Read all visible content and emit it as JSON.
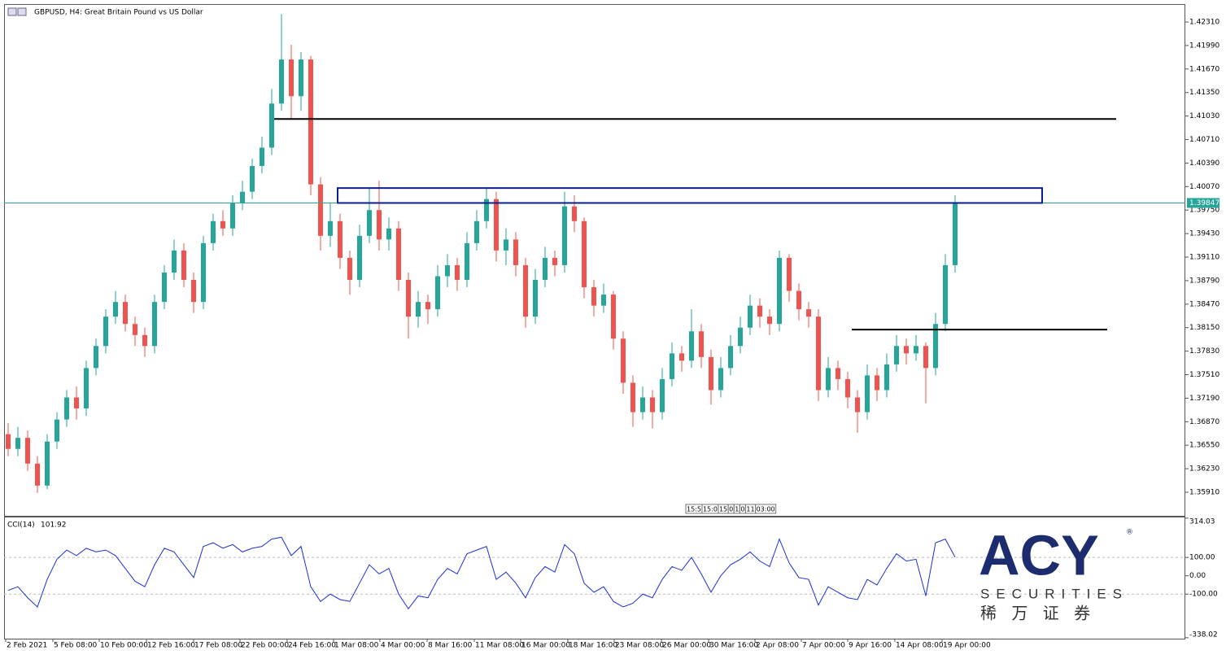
{
  "chart_data": {
    "type": "candlestick",
    "title": "GBPUSD, H4:  Great Britain Pound vs US Dollar",
    "bull_color": "#26a69a",
    "bear_color": "#ef5350",
    "ylim": [
      1.35589,
      1.42554
    ],
    "yticks": [
      {
        "value": 1.4231,
        "label": "1.42310"
      },
      {
        "value": 1.4199,
        "label": "1.41990"
      },
      {
        "value": 1.4167,
        "label": "1.41670"
      },
      {
        "value": 1.4135,
        "label": "1.41350"
      },
      {
        "value": 1.4103,
        "label": "1.41030"
      },
      {
        "value": 1.4071,
        "label": "1.40710"
      },
      {
        "value": 1.4039,
        "label": "1.40390"
      },
      {
        "value": 1.4007,
        "label": "1.40070"
      },
      {
        "value": 1.3975,
        "label": "1.39750"
      },
      {
        "value": 1.3943,
        "label": "1.39430"
      },
      {
        "value": 1.3911,
        "label": "1.39110"
      },
      {
        "value": 1.3879,
        "label": "1.38790"
      },
      {
        "value": 1.3847,
        "label": "1.38470"
      },
      {
        "value": 1.3815,
        "label": "1.38150"
      },
      {
        "value": 1.3783,
        "label": "1.37830"
      },
      {
        "value": 1.3751,
        "label": "1.37510"
      },
      {
        "value": 1.3719,
        "label": "1.37190"
      },
      {
        "value": 1.3687,
        "label": "1.36870"
      },
      {
        "value": 1.3655,
        "label": "1.36550"
      },
      {
        "value": 1.3623,
        "label": "1.36230"
      },
      {
        "value": 1.3591,
        "label": "1.35910"
      }
    ],
    "xticks": [
      {
        "value": -0.25,
        "label": "2 Feb 2021"
      },
      {
        "value": 4.58,
        "label": "5 Feb 08:00"
      },
      {
        "value": 9.33,
        "label": "10 Feb 00:00"
      },
      {
        "value": 14.17,
        "label": "12 Feb 16:00"
      },
      {
        "value": 19,
        "label": "17 Feb 08:00"
      },
      {
        "value": 23.75,
        "label": "22 Feb 00:00"
      },
      {
        "value": 28.58,
        "label": "24 Feb 16:00"
      },
      {
        "value": 33.33,
        "label": "1 Mar 08:00"
      },
      {
        "value": 38.08,
        "label": "4 Mar 00:00"
      },
      {
        "value": 42.92,
        "label": "8 Mar 16:00"
      },
      {
        "value": 47.75,
        "label": "11 Mar 08:00"
      },
      {
        "value": 52.5,
        "label": "16 Mar 00:00"
      },
      {
        "value": 57.33,
        "label": "18 Mar 16:00"
      },
      {
        "value": 62.08,
        "label": "23 Mar 08:00"
      },
      {
        "value": 66.92,
        "label": "26 Mar 00:00"
      },
      {
        "value": 71.75,
        "label": "30 Mar 16:00"
      },
      {
        "value": 76.5,
        "label": "2 Apr 08:00"
      },
      {
        "value": 81.25,
        "label": "7 Apr 00:00"
      },
      {
        "value": 86,
        "label": "9 Apr 16:00"
      },
      {
        "value": 90.83,
        "label": "14 Apr 08:00"
      },
      {
        "value": 95.67,
        "label": "19 Apr 00:00"
      }
    ],
    "ohlc": [
      [
        1.367,
        1.3685,
        1.364,
        1.365
      ],
      [
        1.365,
        1.368,
        1.364,
        1.3665
      ],
      [
        1.3665,
        1.3675,
        1.362,
        1.363
      ],
      [
        1.363,
        1.364,
        1.359,
        1.36
      ],
      [
        1.36,
        1.367,
        1.3595,
        1.366
      ],
      [
        1.366,
        1.37,
        1.365,
        1.369
      ],
      [
        1.369,
        1.373,
        1.368,
        1.372
      ],
      [
        1.372,
        1.3735,
        1.369,
        1.3705
      ],
      [
        1.3705,
        1.377,
        1.3695,
        1.376
      ],
      [
        1.376,
        1.38,
        1.375,
        1.379
      ],
      [
        1.379,
        1.384,
        1.378,
        1.383
      ],
      [
        1.383,
        1.3865,
        1.382,
        1.385
      ],
      [
        1.385,
        1.386,
        1.381,
        1.382
      ],
      [
        1.382,
        1.383,
        1.379,
        1.3805
      ],
      [
        1.3805,
        1.3815,
        1.3775,
        1.379
      ],
      [
        1.379,
        1.386,
        1.378,
        1.385
      ],
      [
        1.385,
        1.39,
        1.384,
        1.389
      ],
      [
        1.389,
        1.3935,
        1.388,
        1.392
      ],
      [
        1.392,
        1.393,
        1.387,
        1.388
      ],
      [
        1.388,
        1.389,
        1.3835,
        1.385
      ],
      [
        1.385,
        1.394,
        1.384,
        1.393
      ],
      [
        1.393,
        1.397,
        1.392,
        1.396
      ],
      [
        1.396,
        1.3975,
        1.394,
        1.395
      ],
      [
        1.395,
        1.3995,
        1.394,
        1.3985
      ],
      [
        1.3985,
        1.4015,
        1.3975,
        1.4
      ],
      [
        1.4,
        1.4045,
        1.399,
        1.4035
      ],
      [
        1.4035,
        1.4075,
        1.4025,
        1.406
      ],
      [
        1.406,
        1.414,
        1.405,
        1.412
      ],
      [
        1.412,
        1.4242,
        1.411,
        1.418
      ],
      [
        1.418,
        1.42,
        1.41,
        1.413
      ],
      [
        1.413,
        1.419,
        1.411,
        1.418
      ],
      [
        1.418,
        1.4185,
        1.3995,
        1.401
      ],
      [
        1.401,
        1.402,
        1.392,
        1.394
      ],
      [
        1.394,
        1.3985,
        1.3925,
        1.396
      ],
      [
        1.396,
        1.397,
        1.3895,
        1.391
      ],
      [
        1.391,
        1.392,
        1.386,
        1.388
      ],
      [
        1.388,
        1.3955,
        1.387,
        1.394
      ],
      [
        1.394,
        1.4005,
        1.393,
        1.3975
      ],
      [
        1.3975,
        1.4015,
        1.392,
        1.3935
      ],
      [
        1.3935,
        1.3965,
        1.392,
        1.395
      ],
      [
        1.395,
        1.396,
        1.3865,
        1.388
      ],
      [
        1.388,
        1.389,
        1.38,
        1.383
      ],
      [
        1.383,
        1.3865,
        1.3815,
        1.385
      ],
      [
        1.385,
        1.386,
        1.382,
        1.384
      ],
      [
        1.384,
        1.39,
        1.383,
        1.3885
      ],
      [
        1.3885,
        1.3915,
        1.387,
        1.39
      ],
      [
        1.39,
        1.391,
        1.3865,
        1.388
      ],
      [
        1.388,
        1.3945,
        1.387,
        1.393
      ],
      [
        1.393,
        1.3975,
        1.392,
        1.396
      ],
      [
        1.396,
        1.4005,
        1.395,
        1.399
      ],
      [
        1.399,
        1.4,
        1.3905,
        1.392
      ],
      [
        1.392,
        1.395,
        1.39,
        1.3935
      ],
      [
        1.3935,
        1.3945,
        1.3885,
        1.39
      ],
      [
        1.39,
        1.391,
        1.3815,
        1.383
      ],
      [
        1.383,
        1.3895,
        1.382,
        1.388
      ],
      [
        1.388,
        1.3925,
        1.387,
        1.391
      ],
      [
        1.391,
        1.392,
        1.3885,
        1.39
      ],
      [
        1.39,
        1.4,
        1.389,
        1.398
      ],
      [
        1.398,
        1.3995,
        1.3945,
        1.396
      ],
      [
        1.396,
        1.3965,
        1.3855,
        1.387
      ],
      [
        1.387,
        1.388,
        1.383,
        1.3845
      ],
      [
        1.3845,
        1.3875,
        1.3835,
        1.386
      ],
      [
        1.386,
        1.3865,
        1.3785,
        1.38
      ],
      [
        1.38,
        1.381,
        1.3725,
        1.374
      ],
      [
        1.374,
        1.375,
        1.368,
        1.37
      ],
      [
        1.37,
        1.3735,
        1.369,
        1.372
      ],
      [
        1.372,
        1.373,
        1.3678,
        1.37
      ],
      [
        1.37,
        1.376,
        1.369,
        1.3745
      ],
      [
        1.3745,
        1.3795,
        1.3735,
        1.378
      ],
      [
        1.378,
        1.379,
        1.3755,
        1.377
      ],
      [
        1.377,
        1.384,
        1.376,
        1.381
      ],
      [
        1.381,
        1.382,
        1.376,
        1.3775
      ],
      [
        1.3775,
        1.3785,
        1.371,
        1.373
      ],
      [
        1.373,
        1.3775,
        1.372,
        1.376
      ],
      [
        1.376,
        1.3805,
        1.375,
        1.379
      ],
      [
        1.379,
        1.383,
        1.378,
        1.3815
      ],
      [
        1.3815,
        1.386,
        1.3805,
        1.3845
      ],
      [
        1.3845,
        1.3855,
        1.3815,
        1.383
      ],
      [
        1.383,
        1.384,
        1.3805,
        1.382
      ],
      [
        1.382,
        1.392,
        1.381,
        1.391
      ],
      [
        1.391,
        1.3915,
        1.385,
        1.3865
      ],
      [
        1.3865,
        1.3875,
        1.3825,
        1.384
      ],
      [
        1.384,
        1.385,
        1.3815,
        1.383
      ],
      [
        1.383,
        1.384,
        1.3715,
        1.373
      ],
      [
        1.373,
        1.3775,
        1.372,
        1.376
      ],
      [
        1.376,
        1.377,
        1.373,
        1.3745
      ],
      [
        1.3745,
        1.3755,
        1.3705,
        1.372
      ],
      [
        1.372,
        1.373,
        1.3672,
        1.37
      ],
      [
        1.37,
        1.3765,
        1.369,
        1.375
      ],
      [
        1.375,
        1.376,
        1.3715,
        1.373
      ],
      [
        1.373,
        1.378,
        1.372,
        1.3765
      ],
      [
        1.3765,
        1.3805,
        1.3755,
        1.379
      ],
      [
        1.379,
        1.38,
        1.3765,
        1.378
      ],
      [
        1.378,
        1.3805,
        1.377,
        1.379
      ],
      [
        1.379,
        1.3795,
        1.3712,
        1.376
      ],
      [
        1.376,
        1.3835,
        1.375,
        1.382
      ],
      [
        1.382,
        1.3915,
        1.381,
        1.39
      ],
      [
        1.39,
        1.3995,
        1.389,
        1.39847
      ]
    ],
    "price_line_color": "#26a69a",
    "levels": [
      {
        "price": 1.4099,
        "color": "#000000"
      },
      {
        "price": 1.38124,
        "color": "#000000"
      }
    ],
    "zone": {
      "top": 1.4005,
      "bottom": 1.39847,
      "color": "#0b1e8c"
    },
    "overlay_labels": [
      "15:5",
      "15:0",
      "15",
      "0",
      "1",
      "0",
      "11",
      "03:00"
    ],
    "indicator": {
      "name": "CCI(14)",
      "color": "#1a2fd6",
      "ylim": [
        -343,
        318
      ],
      "yticks": [
        {
          "value": 314.03,
          "label": "314.03"
        },
        {
          "value": 100,
          "label": "100.00"
        },
        {
          "value": 0,
          "label": "0.00"
        },
        {
          "value": -100,
          "label": "-100.00"
        },
        {
          "value": -338.02,
          "label": "-338.02"
        }
      ],
      "levels": [
        100,
        -100
      ],
      "values": [
        -80,
        -60,
        -120,
        -170,
        -20,
        90,
        140,
        110,
        150,
        130,
        140,
        110,
        40,
        -30,
        -60,
        60,
        150,
        130,
        60,
        -10,
        160,
        180,
        150,
        170,
        130,
        150,
        160,
        200,
        210,
        110,
        160,
        -60,
        -140,
        -100,
        -130,
        -140,
        -40,
        60,
        10,
        40,
        -100,
        -180,
        -110,
        -120,
        -20,
        40,
        10,
        120,
        140,
        160,
        -20,
        20,
        -40,
        -120,
        -10,
        50,
        20,
        170,
        120,
        -40,
        -90,
        -60,
        -140,
        -170,
        -150,
        -100,
        -120,
        -20,
        50,
        30,
        100,
        10,
        -90,
        0,
        60,
        90,
        130,
        80,
        50,
        200,
        70,
        -10,
        -20,
        -160,
        -60,
        -90,
        -120,
        -130,
        -20,
        -50,
        40,
        120,
        80,
        90,
        -110,
        180,
        200,
        101.92
      ]
    }
  },
  "logo": {
    "brand": "ACY",
    "registered": "®",
    "tagline": "SECURITIES",
    "chinese": "稀 万 证 券"
  }
}
